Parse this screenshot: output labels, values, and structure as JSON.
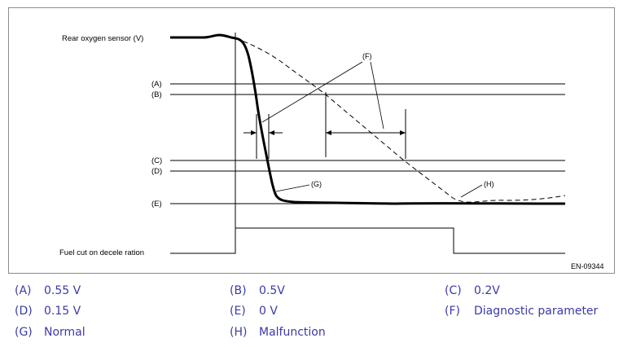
{
  "diagram": {
    "y_axis_label": "Rear oxygen sensor (V)",
    "level_labels": [
      "(A)",
      "(B)",
      "(C)",
      "(D)",
      "(E)"
    ],
    "fuel_cut_label": "Fuel cut on decele ration",
    "callout_f": "(F)",
    "callout_g": "(G)",
    "callout_h": "(H)",
    "figure_id": "EN-09344"
  },
  "legend": [
    {
      "code": "(A)",
      "text": "0.55 V"
    },
    {
      "code": "(B)",
      "text": "0.5V"
    },
    {
      "code": "(C)",
      "text": "0.2V"
    },
    {
      "code": "(D)",
      "text": "0.15 V"
    },
    {
      "code": "(E)",
      "text": "0 V"
    },
    {
      "code": "(F)",
      "text": "Diagnostic parameter"
    },
    {
      "code": "(G)",
      "text": "Normal"
    },
    {
      "code": "(H)",
      "text": "Malfunction"
    }
  ],
  "colors": {
    "legend_text": "#3a3aa8",
    "frame": "#8c8c8c"
  }
}
